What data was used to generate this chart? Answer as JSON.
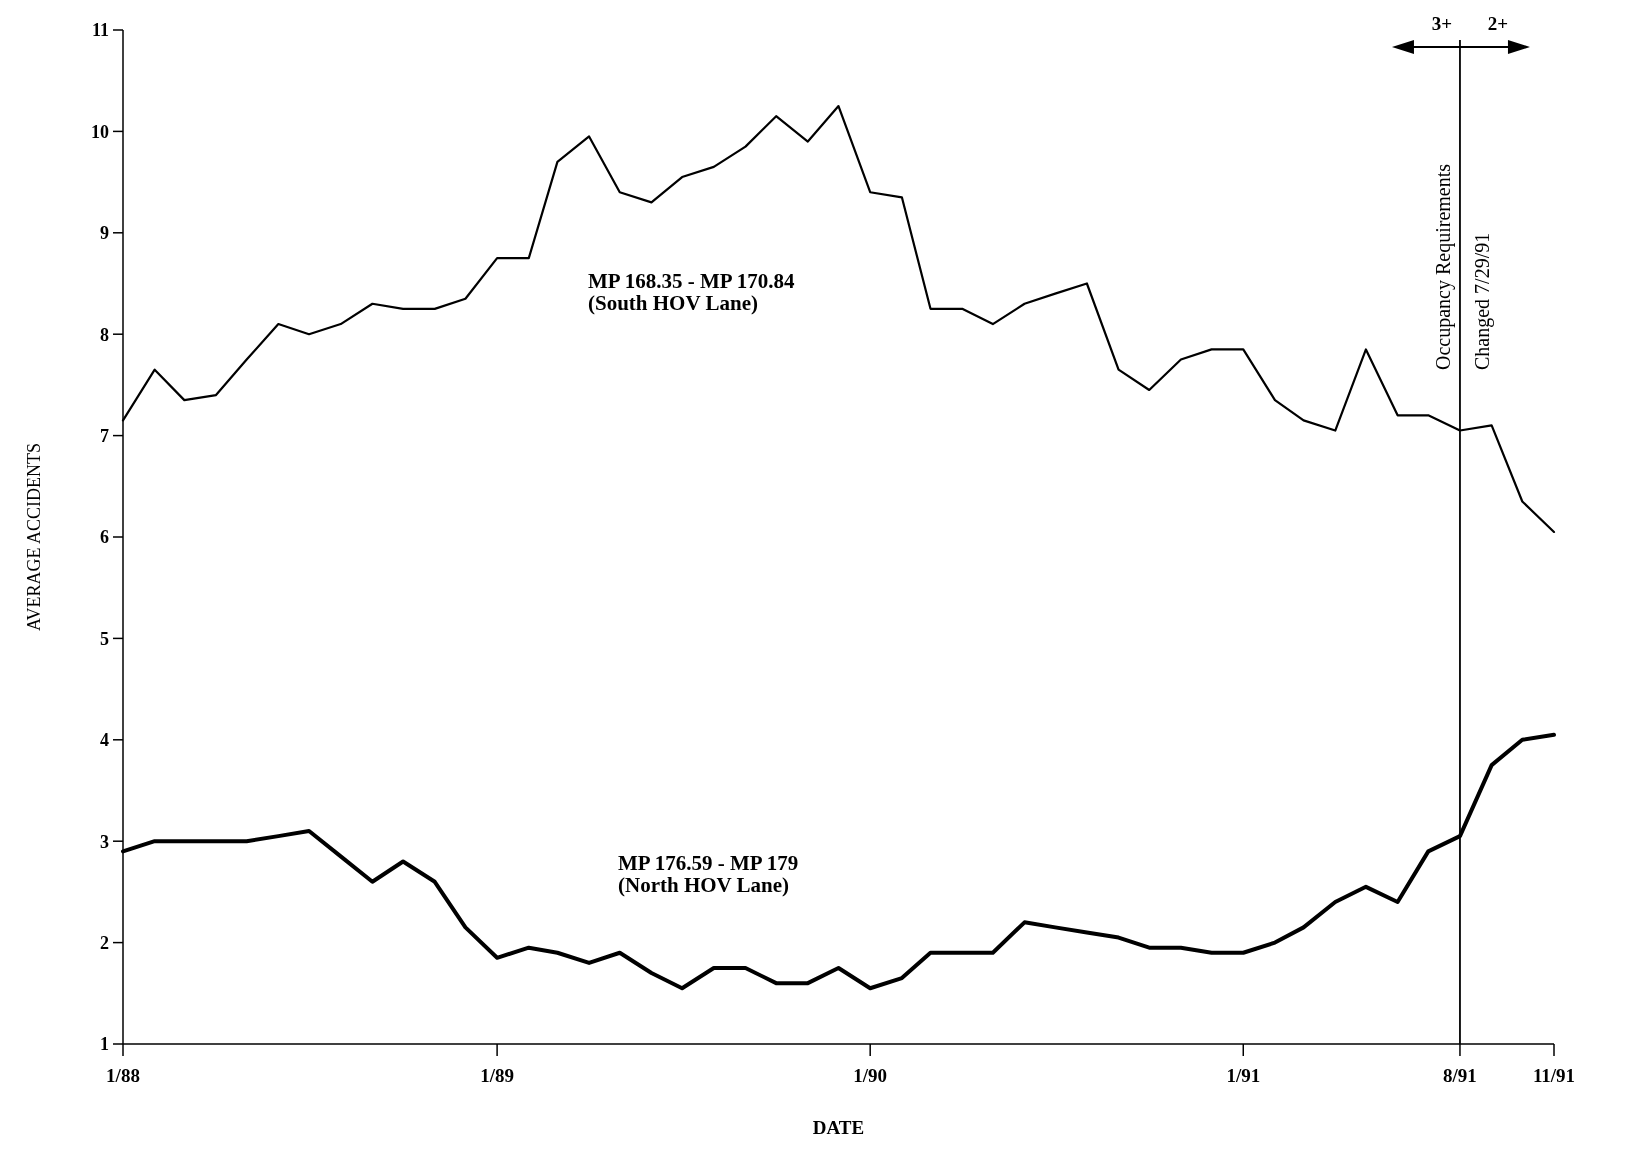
{
  "chart_data": {
    "type": "line",
    "xlabel": "DATE",
    "ylabel": "AVERAGE ACCIDENTS",
    "x": [
      "1988-01",
      "1988-02",
      "1988-03",
      "1988-04",
      "1988-05",
      "1988-06",
      "1988-07",
      "1988-08",
      "1988-09",
      "1988-10",
      "1988-11",
      "1988-12",
      "1989-01",
      "1989-02",
      "1989-03",
      "1989-04",
      "1989-05",
      "1989-06",
      "1989-07",
      "1989-08",
      "1989-09",
      "1989-10",
      "1989-11",
      "1989-12",
      "1990-01",
      "1990-02",
      "1990-03",
      "1990-04",
      "1990-05",
      "1990-06",
      "1990-07",
      "1990-08",
      "1990-09",
      "1990-10",
      "1990-11",
      "1990-12",
      "1991-01",
      "1991-02",
      "1991-03",
      "1991-04",
      "1991-05",
      "1991-06",
      "1991-07",
      "1991-08",
      "1991-09",
      "1991-10",
      "1991-11"
    ],
    "series": [
      {
        "name": "MP 168.35 - MP 170.84 (South HOV Lane)",
        "color": "#000000",
        "values": [
          7.15,
          7.65,
          7.35,
          7.4,
          7.75,
          8.1,
          8.0,
          8.1,
          8.3,
          8.25,
          8.25,
          8.35,
          8.75,
          8.75,
          9.7,
          9.95,
          9.4,
          9.3,
          9.55,
          9.65,
          9.85,
          10.15,
          9.9,
          10.25,
          9.4,
          9.35,
          8.25,
          8.25,
          8.1,
          8.3,
          8.4,
          8.5,
          7.65,
          7.45,
          7.75,
          7.85,
          7.85,
          7.35,
          7.15,
          7.05,
          7.85,
          7.2,
          7.2,
          7.05,
          7.1,
          6.35,
          6.05
        ]
      },
      {
        "name": "MP 176.59 - MP 179 (North HOV Lane)",
        "color": "#000000",
        "values": [
          2.9,
          3.0,
          3.0,
          3.0,
          3.0,
          3.05,
          3.1,
          2.85,
          2.6,
          2.8,
          2.6,
          2.15,
          1.85,
          1.95,
          1.9,
          1.8,
          1.9,
          1.7,
          1.55,
          1.75,
          1.75,
          1.6,
          1.6,
          1.75,
          1.55,
          1.65,
          1.9,
          1.9,
          1.9,
          2.2,
          2.15,
          2.1,
          2.05,
          1.95,
          1.95,
          1.9,
          1.9,
          2.0,
          2.15,
          2.4,
          2.55,
          2.4,
          2.9,
          3.05,
          3.75,
          4.0,
          4.05
        ]
      }
    ],
    "xlim": [
      "1988-01",
      "1991-11"
    ],
    "xticks": [
      {
        "value": "1988-01",
        "label": "1/88"
      },
      {
        "value": "1989-01",
        "label": "1/89"
      },
      {
        "value": "1990-01",
        "label": "1/90"
      },
      {
        "value": "1991-01",
        "label": "1/91"
      },
      {
        "value": "1991-08",
        "label": "8/91"
      },
      {
        "value": "1991-11",
        "label": "11/91"
      }
    ],
    "ylim": [
      1,
      11
    ],
    "yticks": [
      1,
      2,
      3,
      4,
      5,
      6,
      7,
      8,
      9,
      10,
      11
    ],
    "ref_lines": [
      {
        "axis": "x",
        "value": "1991-08",
        "label": "Occupancy Requirements Changed 7/29/91",
        "color": "#000000"
      }
    ],
    "annotations": [
      "3+",
      "2+"
    ],
    "grid": false,
    "marker": "none",
    "line_style": "solid"
  }
}
